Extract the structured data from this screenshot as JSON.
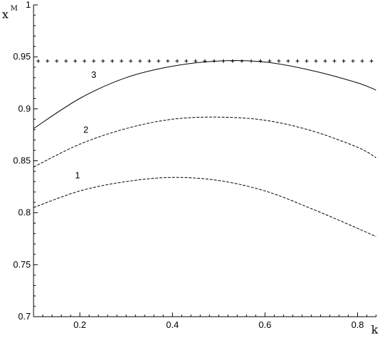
{
  "chart_data": {
    "type": "line",
    "xlabel": "k",
    "ylabel": "x",
    "ylabel_superscript": "M",
    "xlim": [
      0.1,
      0.84
    ],
    "ylim": [
      0.7,
      1.0
    ],
    "x_ticks": [
      0.2,
      0.4,
      0.6,
      0.8
    ],
    "x_tick_labels": [
      "0.2",
      "0.4",
      "0.6",
      "0.8"
    ],
    "y_ticks": [
      0.7,
      0.75,
      0.8,
      0.85,
      0.9,
      0.95,
      1.0
    ],
    "y_tick_labels": [
      "0.7",
      "0.75",
      "0.8",
      "0.85",
      "0.9",
      "0.95",
      "1"
    ],
    "grid": false,
    "series": [
      {
        "label": "1",
        "style": "dashed",
        "x": [
          0.1,
          0.2,
          0.3,
          0.4,
          0.5,
          0.6,
          0.7,
          0.8,
          0.84
        ],
        "y": [
          0.805,
          0.821,
          0.83,
          0.834,
          0.831,
          0.821,
          0.804,
          0.785,
          0.777
        ]
      },
      {
        "label": "2",
        "style": "dashed",
        "x": [
          0.1,
          0.2,
          0.3,
          0.4,
          0.5,
          0.6,
          0.7,
          0.8,
          0.84
        ],
        "y": [
          0.844,
          0.866,
          0.881,
          0.89,
          0.892,
          0.889,
          0.879,
          0.863,
          0.853
        ]
      },
      {
        "label": "3",
        "style": "solid",
        "x": [
          0.1,
          0.2,
          0.3,
          0.4,
          0.5,
          0.6,
          0.7,
          0.8,
          0.84
        ],
        "y": [
          0.881,
          0.91,
          0.93,
          0.941,
          0.946,
          0.945,
          0.937,
          0.925,
          0.918
        ]
      },
      {
        "style": "crosses",
        "x": [
          0.1,
          0.84
        ],
        "y": [
          0.946,
          0.946
        ]
      }
    ],
    "curve_labels": [
      {
        "text": "1",
        "x": 0.195,
        "y": 0.833
      },
      {
        "text": "2",
        "x": 0.213,
        "y": 0.877
      },
      {
        "text": "3",
        "x": 0.23,
        "y": 0.93
      }
    ]
  }
}
